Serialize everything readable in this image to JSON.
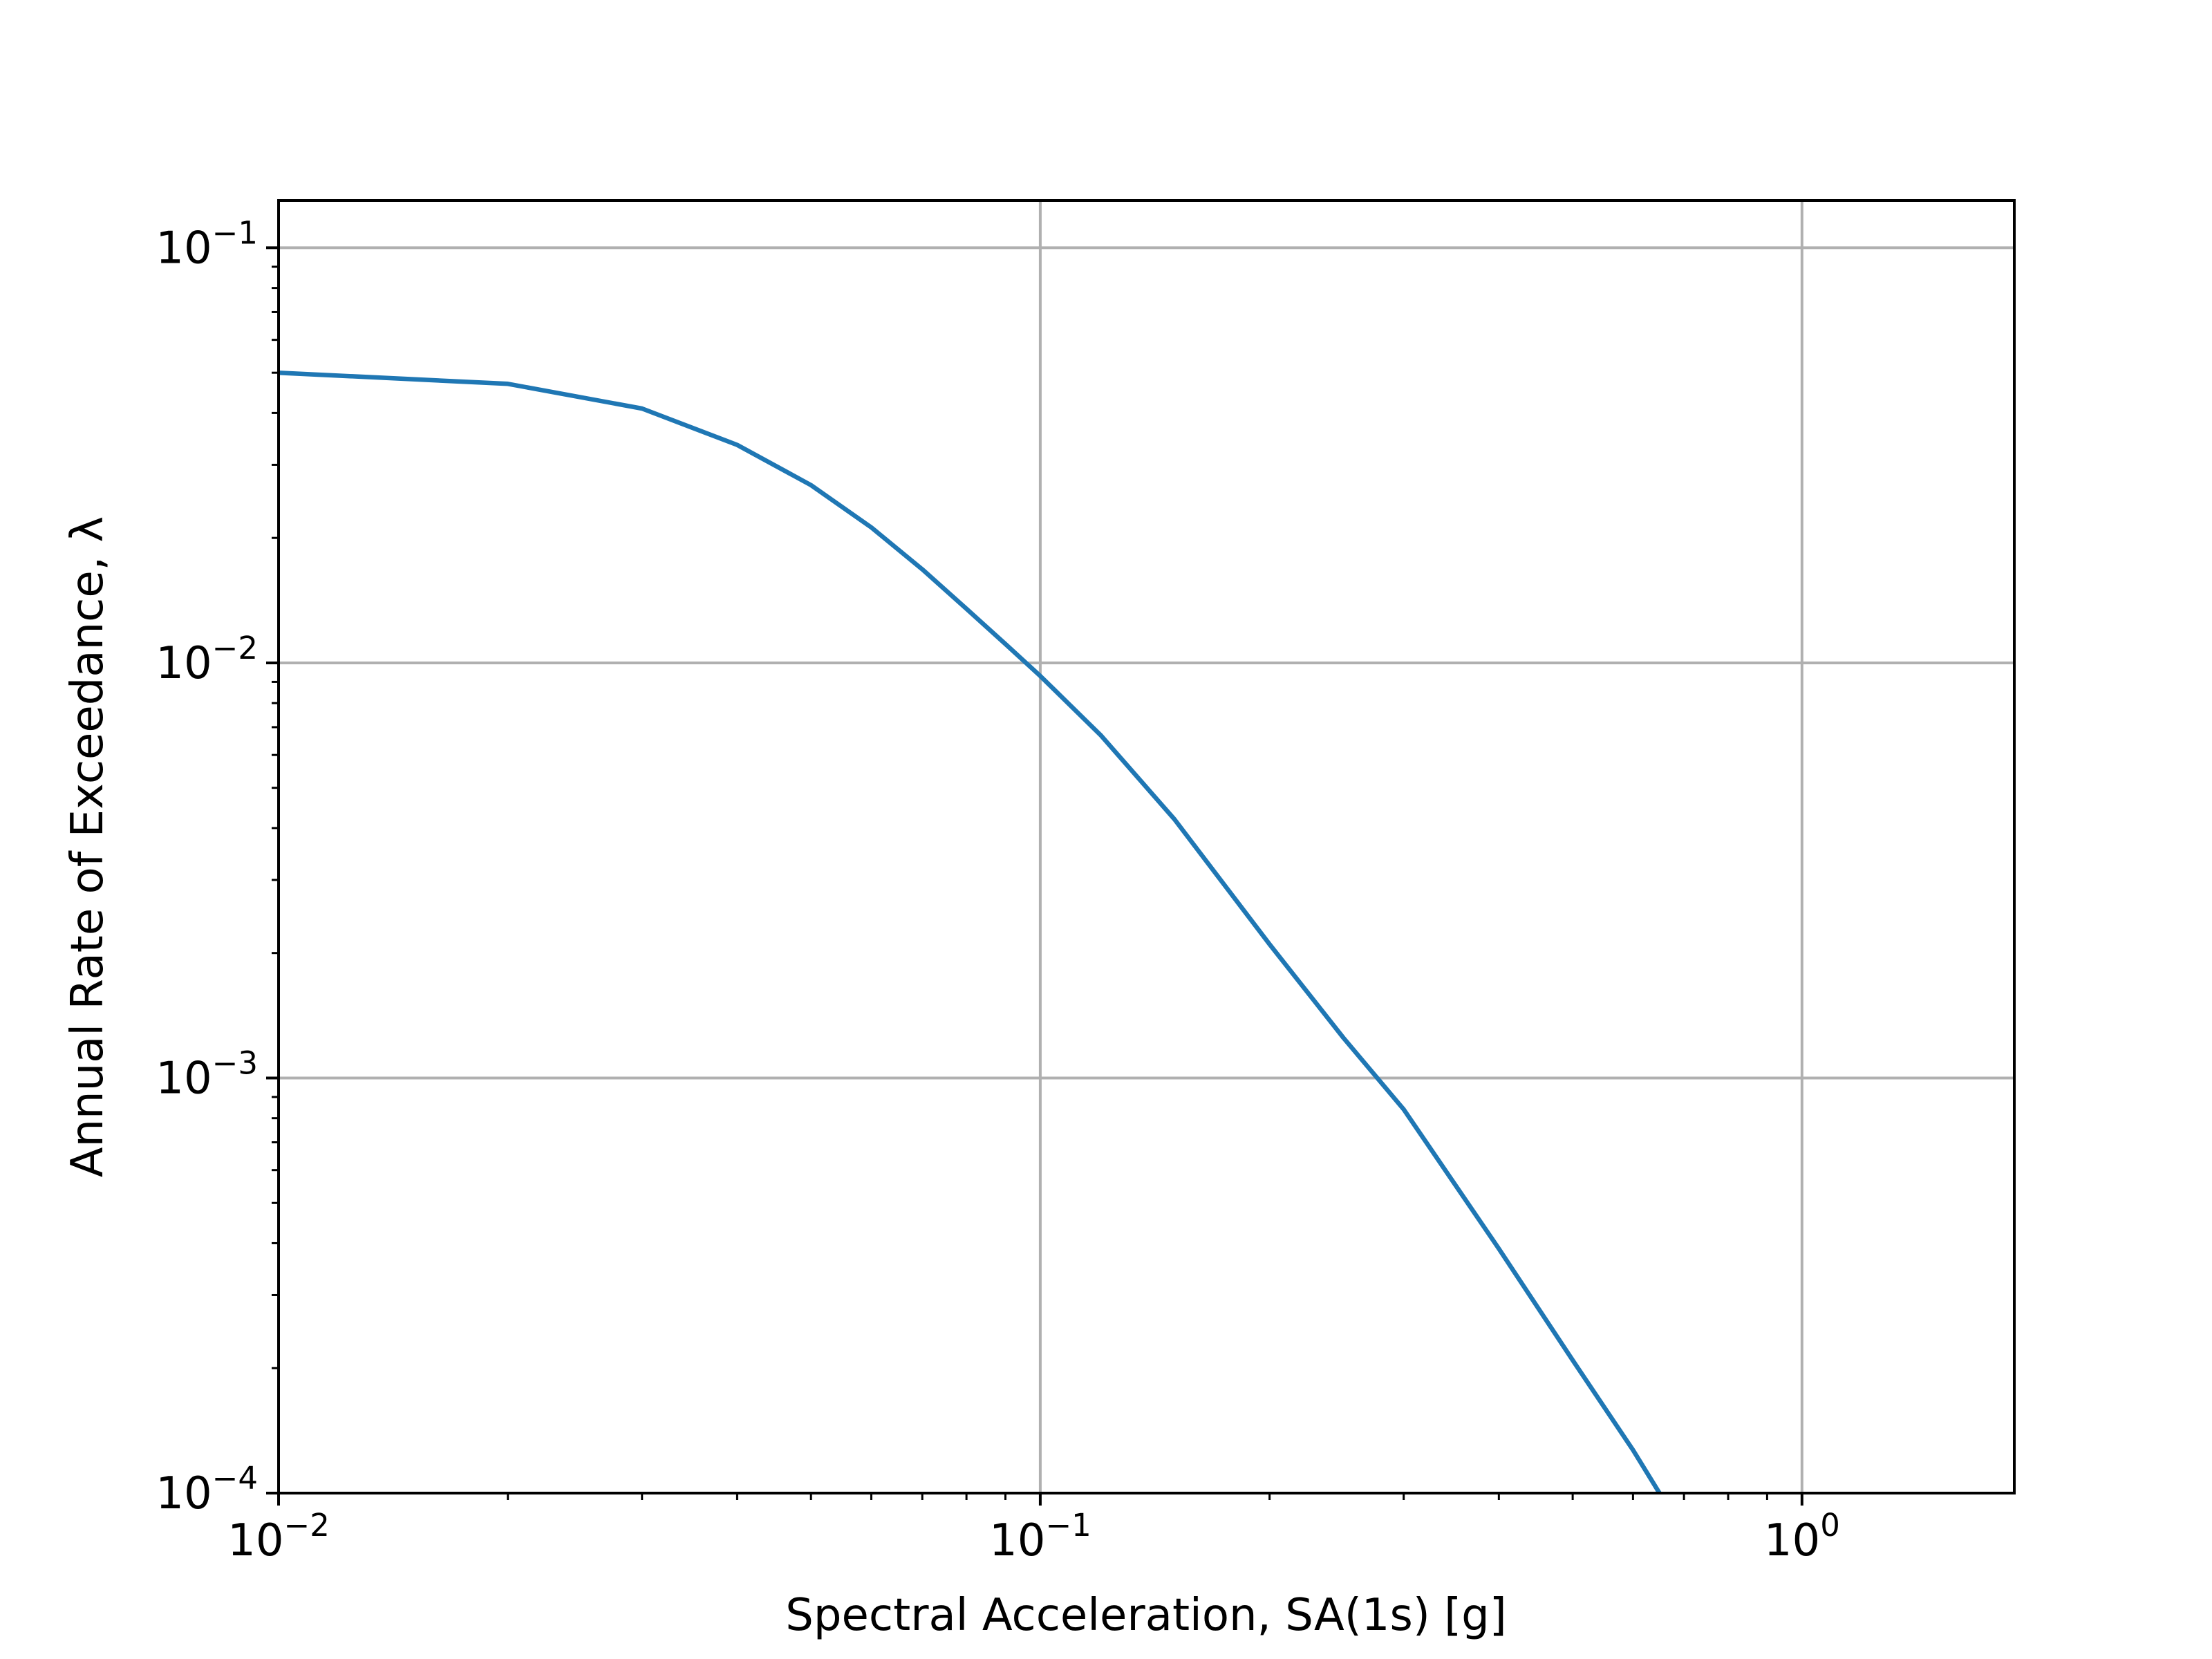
{
  "chart_data": {
    "type": "line",
    "xscale": "log",
    "yscale": "log",
    "xlim": [
      0.01,
      1.9
    ],
    "ylim": [
      0.0001,
      0.13
    ],
    "xlabel": "Spectral Acceleration, SA(1s) [g]",
    "ylabel": "Annual Rate of Exceedance, λ",
    "grid": true,
    "x_ticks": [
      {
        "value": 0.01,
        "base": "10",
        "exp": "−2"
      },
      {
        "value": 0.1,
        "base": "10",
        "exp": "−1"
      },
      {
        "value": 1,
        "base": "10",
        "exp": "0"
      }
    ],
    "y_ticks": [
      {
        "value": 0.1,
        "base": "10",
        "exp": "−1"
      },
      {
        "value": 0.01,
        "base": "10",
        "exp": "−2"
      },
      {
        "value": 0.001,
        "base": "10",
        "exp": "−3"
      },
      {
        "value": 0.0001,
        "base": "10",
        "exp": "−4"
      }
    ],
    "line_color": "#1f77b4",
    "grid_color": "#b0b0b0",
    "series": [
      {
        "x": [
          0.01,
          0.02,
          0.03,
          0.04,
          0.05,
          0.06,
          0.07,
          0.08,
          0.09,
          0.1,
          0.12,
          0.15,
          0.2,
          0.25,
          0.3,
          0.4,
          0.5,
          0.6,
          0.65
        ],
        "y": [
          0.05,
          0.047,
          0.041,
          0.0335,
          0.0268,
          0.0212,
          0.0168,
          0.0135,
          0.0111,
          0.0093,
          0.0067,
          0.0042,
          0.0021,
          0.00125,
          0.00084,
          0.000388,
          0.000209,
          0.000127,
          0.0001
        ]
      }
    ]
  }
}
